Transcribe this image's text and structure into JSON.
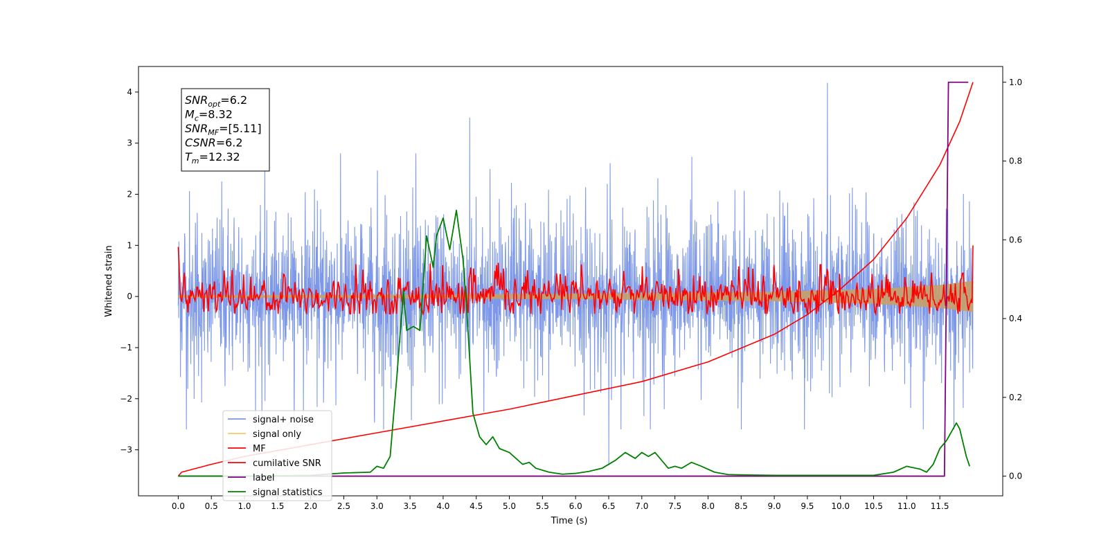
{
  "chart_data": {
    "type": "line",
    "xlabel": "Time (s)",
    "ylabel_left": "Whitened strain",
    "xlim": [
      -0.6,
      12.45
    ],
    "ylim_left": [
      -3.9,
      4.5
    ],
    "ylim_right": [
      -0.05,
      1.04
    ],
    "x_ticks": [
      0.0,
      0.5,
      1.0,
      1.5,
      2.0,
      2.5,
      3.0,
      3.5,
      4.0,
      4.5,
      5.0,
      5.5,
      6.0,
      6.5,
      7.0,
      7.5,
      8.0,
      8.5,
      9.0,
      9.5,
      10.0,
      10.5,
      11.0,
      11.5
    ],
    "x_tick_labels": [
      "0.0",
      "0.5",
      "1.0",
      "1.5",
      "2.0",
      "2.5",
      "3.0",
      "3.5",
      "4.0",
      "4.5",
      "5.0",
      "5.5",
      "6.0",
      "6.5",
      "7.0",
      "7.5",
      "8.0",
      "8.5",
      "9.0",
      "9.5",
      "10.0",
      "10.5",
      "11.0",
      "11.5"
    ],
    "y_left_ticks": [
      -3,
      -2,
      -1,
      0,
      1,
      2,
      3,
      4
    ],
    "y_left_tick_labels": [
      "−3",
      "−2",
      "−1",
      "0",
      "1",
      "2",
      "3",
      "4"
    ],
    "y_right_ticks": [
      0.0,
      0.2,
      0.4,
      0.6,
      0.8,
      1.0
    ],
    "y_right_tick_labels": [
      "0.0",
      "0.2",
      "0.4",
      "0.6",
      "0.8",
      "1.0"
    ],
    "info_box": {
      "lines": [
        {
          "var": "SNR",
          "sub": "opt",
          "value": "=6.2"
        },
        {
          "var": "M",
          "sub": "c",
          "value": "=8.32"
        },
        {
          "var": "SNR",
          "sub": "MF",
          "value": "=[5.11]"
        },
        {
          "var": "CSNR",
          "sub": "",
          "value": "=6.2"
        },
        {
          "var": "T",
          "sub": "m",
          "value": "=12.32"
        }
      ]
    },
    "legend": {
      "position": "lower-left",
      "entries": [
        {
          "label": "signal+ noise",
          "color": "#7a96e8"
        },
        {
          "label": "signal only",
          "color": "#f5c96a"
        },
        {
          "label": "MF",
          "color": "#ff0000"
        },
        {
          "label": "cumilative SNR",
          "color": "#ff0000"
        },
        {
          "label": "label",
          "color": "#800080"
        },
        {
          "label": "signal statistics",
          "color": "#008000"
        }
      ]
    },
    "series": [
      {
        "name": "signal+ noise",
        "axis": "left",
        "color": "#7a96e8",
        "x_range": [
          0.0,
          12.0
        ],
        "typical_range": [
          -2.0,
          2.2
        ],
        "peak_max": 4.18,
        "peak_min": -3.3
      },
      {
        "name": "signal only",
        "axis": "left",
        "color": "#f5c96a",
        "envelope": {
          "x": [
            0.0,
            3.0,
            6.0,
            9.0,
            10.5,
            11.5,
            12.0
          ],
          "amplitude": [
            0.02,
            0.03,
            0.05,
            0.09,
            0.14,
            0.22,
            0.3
          ]
        }
      },
      {
        "name": "MF",
        "axis": "left",
        "color": "#ff0000",
        "x_range": [
          0.0,
          12.0
        ],
        "typical_range": [
          -0.3,
          0.4
        ],
        "start_value": 0.97,
        "end_value": 1.0
      },
      {
        "name": "cumilative SNR",
        "axis": "right",
        "color": "#ff0000",
        "x": [
          0.0,
          0.05,
          0.5,
          1.0,
          2.0,
          3.0,
          4.0,
          5.0,
          6.0,
          7.0,
          8.0,
          9.0,
          9.5,
          10.0,
          10.5,
          11.0,
          11.5,
          11.8,
          12.0
        ],
        "y": [
          0.0,
          0.01,
          0.03,
          0.05,
          0.08,
          0.11,
          0.14,
          0.17,
          0.205,
          0.24,
          0.29,
          0.36,
          0.41,
          0.475,
          0.55,
          0.655,
          0.79,
          0.9,
          1.0
        ]
      },
      {
        "name": "label",
        "axis": "right",
        "color": "#800080",
        "x": [
          0.0,
          11.57,
          11.63,
          11.93
        ],
        "y": [
          0.0,
          0.0,
          1.0,
          1.0
        ]
      },
      {
        "name": "signal statistics",
        "axis": "right",
        "color": "#008000",
        "x": [
          0.0,
          1.0,
          2.0,
          2.5,
          2.9,
          3.0,
          3.1,
          3.2,
          3.3,
          3.4,
          3.45,
          3.55,
          3.65,
          3.75,
          3.85,
          3.9,
          4.0,
          4.1,
          4.2,
          4.3,
          4.35,
          4.45,
          4.55,
          4.65,
          4.75,
          4.85,
          5.0,
          5.2,
          5.3,
          5.4,
          5.6,
          5.8,
          6.0,
          6.2,
          6.4,
          6.6,
          6.75,
          6.9,
          7.0,
          7.1,
          7.2,
          7.3,
          7.4,
          7.5,
          7.6,
          7.75,
          7.9,
          8.1,
          8.3,
          8.6,
          9.0,
          9.5,
          10.0,
          10.5,
          10.8,
          11.0,
          11.2,
          11.3,
          11.4,
          11.5,
          11.6,
          11.7,
          11.75,
          11.8,
          11.9,
          11.95
        ],
        "y": [
          0.0,
          0.0,
          0.002,
          0.008,
          0.01,
          0.025,
          0.02,
          0.05,
          0.25,
          0.47,
          0.37,
          0.38,
          0.37,
          0.61,
          0.53,
          0.61,
          0.655,
          0.575,
          0.675,
          0.55,
          0.44,
          0.16,
          0.1,
          0.08,
          0.1,
          0.07,
          0.06,
          0.03,
          0.035,
          0.02,
          0.01,
          0.005,
          0.007,
          0.012,
          0.02,
          0.04,
          0.06,
          0.045,
          0.06,
          0.05,
          0.06,
          0.04,
          0.02,
          0.025,
          0.02,
          0.035,
          0.025,
          0.01,
          0.004,
          0.003,
          0.002,
          0.002,
          0.002,
          0.002,
          0.01,
          0.025,
          0.018,
          0.01,
          0.03,
          0.07,
          0.09,
          0.12,
          0.135,
          0.12,
          0.05,
          0.025
        ]
      }
    ]
  }
}
